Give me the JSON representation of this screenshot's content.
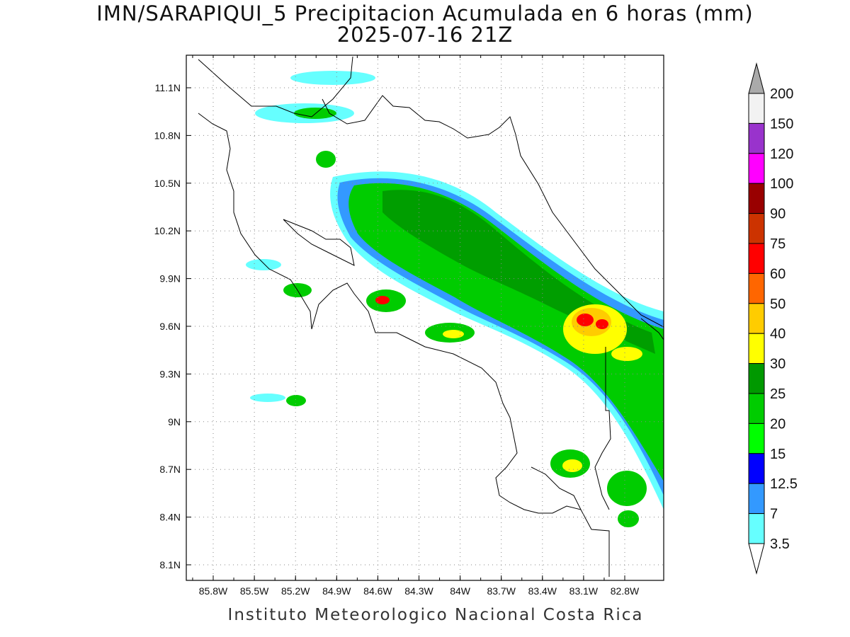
{
  "title_line1": "IMN/SARAPIQUI_5 Precipitacion Acumulada en 6 horas (mm)",
  "title_line2": "2025-07-16 21Z",
  "footer": "Instituto Meteorologico Nacional Costa Rica",
  "map": {
    "lon_labels": [
      "85.8W",
      "85.5W",
      "85.2W",
      "84.9W",
      "84.6W",
      "84.3W",
      "84W",
      "83.7W",
      "83.4W",
      "83.1W",
      "82.8W"
    ],
    "lat_labels": [
      "11.1N",
      "10.8N",
      "10.5N",
      "10.2N",
      "9.9N",
      "9.6N",
      "9.3N",
      "9N",
      "8.7N",
      "8.4N",
      "8.1N"
    ],
    "gridlines": "dotted"
  },
  "colorbar": {
    "levels": [
      "3.5",
      "7",
      "12.5",
      "15",
      "20",
      "25",
      "30",
      "40",
      "50",
      "60",
      "75",
      "90",
      "100",
      "120",
      "150",
      "200"
    ],
    "colors": [
      "#ffffff",
      "#66ffff",
      "#3399ff",
      "#0000ff",
      "#00ff00",
      "#00cc00",
      "#009900",
      "#ffff00",
      "#ffcc00",
      "#ff6600",
      "#ff0000",
      "#cc3300",
      "#990000",
      "#ff00ff",
      "#9933cc",
      "#f2f2f2",
      "#aaaaaa"
    ]
  },
  "legend_icons": {
    "top_arrow": "triangle-up-gray",
    "bottom_arrow": "triangle-down-white"
  }
}
